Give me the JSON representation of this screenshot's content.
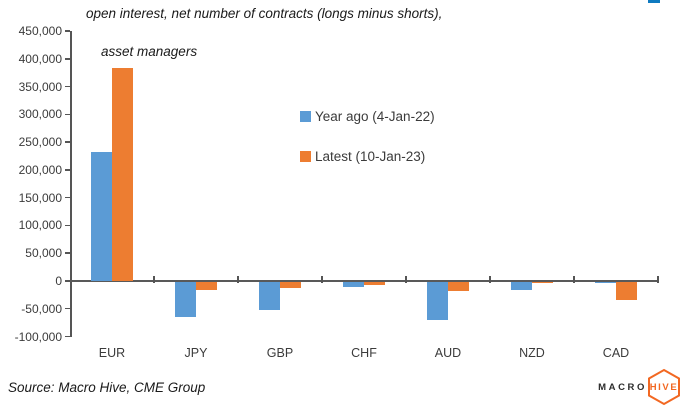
{
  "title": {
    "line1": "open interest, net number of contracts (longs minus shorts),",
    "line2": "asset managers"
  },
  "source": "Source: Macro Hive, CME Group",
  "logo": {
    "macro": "MACRO",
    "hive": "HIVE",
    "hex_color": "#f26822"
  },
  "colors": {
    "series_blue": "#5B9BD5",
    "series_orange": "#ED7D31",
    "axis": "#595959",
    "topright_mark": "#0f7ac0"
  },
  "chart_data": {
    "type": "bar",
    "title": "open interest, net number of contracts (longs minus shorts), asset managers",
    "categories": [
      "EUR",
      "JPY",
      "GBP",
      "CHF",
      "AUD",
      "NZD",
      "CAD"
    ],
    "series": [
      {
        "name": "Year ago (4-Jan-22)",
        "color": "#5B9BD5",
        "values": [
          233000,
          -65000,
          -52000,
          -11000,
          -71000,
          -17000,
          -3000
        ]
      },
      {
        "name": "Latest (10-Jan-23)",
        "color": "#ED7D31",
        "values": [
          383000,
          -17000,
          -13000,
          -8000,
          -18000,
          -2000,
          -34000
        ]
      }
    ],
    "ylim": [
      -100000,
      450000
    ],
    "ytick_step": 50000,
    "ytick_labels": [
      "450,000",
      "400,000",
      "350,000",
      "300,000",
      "250,000",
      "200,000",
      "150,000",
      "100,000",
      "50,000",
      "0",
      "-50,000",
      "-100,000"
    ],
    "xlabel": "",
    "ylabel": "",
    "grid": false,
    "legend_position": "center-right"
  }
}
